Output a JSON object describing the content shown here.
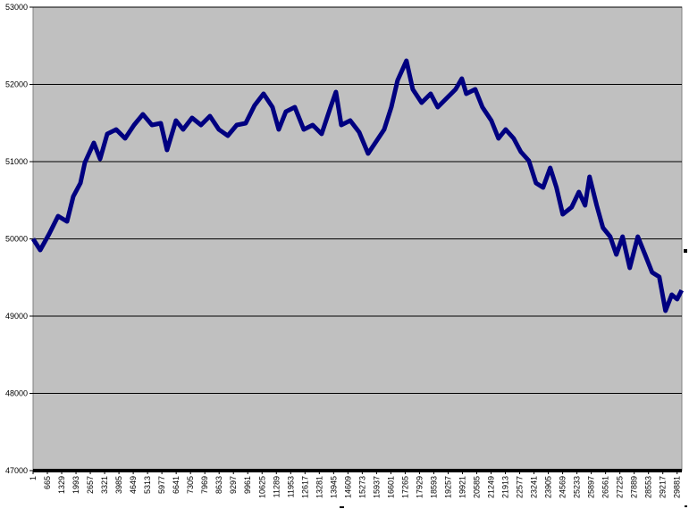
{
  "chart_data": {
    "type": "line",
    "color": "#000080",
    "grid": true,
    "x": [
      1,
      333,
      747,
      1161,
      1576,
      1866,
      2198,
      2404,
      2819,
      3109,
      3441,
      3855,
      4270,
      4684,
      5098,
      5513,
      5927,
      6217,
      6632,
      6963,
      7378,
      7792,
      8207,
      8621,
      9035,
      9450,
      9864,
      10279,
      10693,
      11108,
      11398,
      11729,
      12144,
      12558,
      12973,
      13387,
      13802,
      14050,
      14299,
      14713,
      15128,
      15542,
      15874,
      16289,
      16620,
      16910,
      17324,
      17615,
      18029,
      18444,
      18775,
      19190,
      19604,
      19894,
      20102,
      20516,
      20848,
      21262,
      21594,
      21925,
      22298,
      22630,
      23003,
      23332,
      23663,
      23995,
      24285,
      24575,
      24990,
      25322,
      25612,
      25819,
      26151,
      26441,
      26773,
      27063,
      27353,
      27685,
      28058,
      28390,
      28721,
      29053,
      29343,
      29633,
      29882,
      30090
    ],
    "values": [
      50000,
      49855,
      50064,
      50295,
      50225,
      50549,
      50723,
      50988,
      51243,
      51035,
      51358,
      51416,
      51301,
      51474,
      51613,
      51474,
      51497,
      51150,
      51532,
      51416,
      51566,
      51474,
      51590,
      51416,
      51335,
      51474,
      51497,
      51728,
      51879,
      51705,
      51416,
      51647,
      51705,
      51416,
      51474,
      51358,
      51705,
      51902,
      51474,
      51532,
      51382,
      51104,
      51243,
      51416,
      51705,
      52052,
      52306,
      51936,
      51763,
      51879,
      51705,
      51821,
      51936,
      52075,
      51879,
      51936,
      51705,
      51532,
      51301,
      51416,
      51301,
      51127,
      51012,
      50723,
      50665,
      50919,
      50665,
      50318,
      50410,
      50607,
      50434,
      50803,
      50434,
      50145,
      50029,
      49798,
      50029,
      49624,
      50029,
      49798,
      49566,
      49509,
      49069,
      49277,
      49220,
      49335
    ],
    "xlim": [
      1,
      30100
    ],
    "xticks": [
      1,
      665,
      1329,
      1993,
      2657,
      3321,
      3985,
      4649,
      5313,
      5977,
      6641,
      7305,
      7969,
      8633,
      9297,
      9961,
      10625,
      11289,
      11953,
      12617,
      13281,
      13945,
      14609,
      15273,
      15937,
      16601,
      17265,
      17929,
      18593,
      19257,
      19921,
      20585,
      21249,
      21913,
      22577,
      23241,
      23905,
      24569,
      25233,
      25897,
      26561,
      27225,
      27889,
      28553,
      29217,
      29881
    ],
    "ylim": [
      47000,
      53000
    ],
    "yticks": [
      47000,
      48000,
      49000,
      50000,
      51000,
      52000,
      53000
    ]
  }
}
